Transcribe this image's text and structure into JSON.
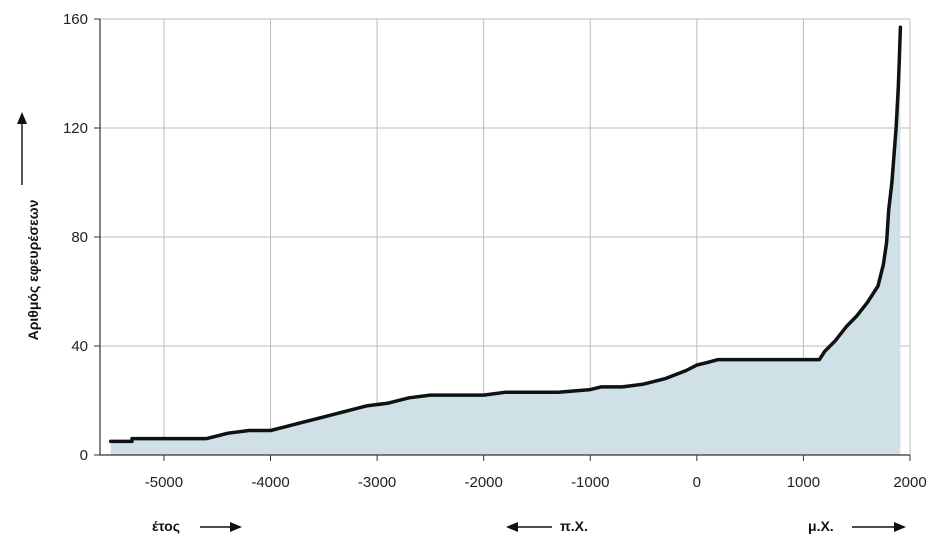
{
  "chart_data": {
    "type": "area",
    "ylabel": "Αριθμός εφευρέσεων",
    "xlim": [
      -5600,
      2000
    ],
    "ylim": [
      0,
      160
    ],
    "x_ticks": [
      -5000,
      -4000,
      -3000,
      -2000,
      -1000,
      0,
      1000,
      2000
    ],
    "y_ticks": [
      0,
      40,
      80,
      120,
      160
    ],
    "grid": true,
    "colors": {
      "fill": "#cfe0e6",
      "line": "#111111",
      "grid": "#bbbbbb"
    },
    "series": [
      {
        "x": [
          -5500,
          -5300,
          -5300,
          -4600,
          -4500,
          -4400,
          -4200,
          -4000,
          -3900,
          -3700,
          -3500,
          -3300,
          -3100,
          -2900,
          -2700,
          -2500,
          -2300,
          -2000,
          -1800,
          -1500,
          -1300,
          -1000,
          -900,
          -700,
          -500,
          -300,
          -100,
          0,
          100,
          200,
          400,
          600,
          800,
          1000,
          1100,
          1150,
          1200,
          1300,
          1400,
          1500,
          1600,
          1700,
          1750,
          1780,
          1800,
          1830,
          1850,
          1870,
          1890,
          1900,
          1910
        ],
        "y": [
          5,
          5,
          6,
          6,
          7,
          8,
          9,
          9,
          10,
          12,
          14,
          16,
          18,
          19,
          21,
          22,
          22,
          22,
          23,
          23,
          23,
          24,
          25,
          25,
          26,
          28,
          31,
          33,
          34,
          35,
          35,
          35,
          35,
          35,
          35,
          35,
          38,
          42,
          47,
          51,
          56,
          62,
          70,
          78,
          90,
          100,
          110,
          120,
          135,
          145,
          157
        ]
      }
    ]
  },
  "annotations": {
    "year": "έτος",
    "bc": "π.Χ.",
    "ad": "μ.Χ."
  }
}
